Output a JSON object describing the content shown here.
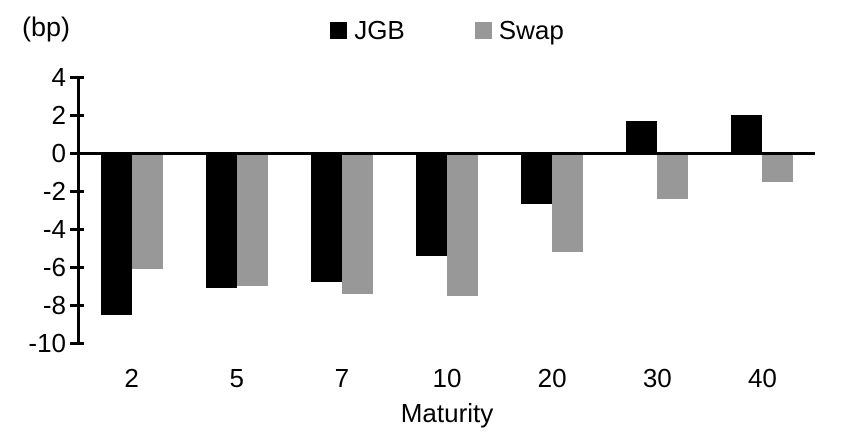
{
  "chart_data": {
    "type": "bar",
    "title": "",
    "categories": [
      "2",
      "5",
      "7",
      "10",
      "20",
      "30",
      "40"
    ],
    "series": [
      {
        "name": "JGB",
        "color": "#000000",
        "values": [
          -8.5,
          -7.1,
          -6.8,
          -5.4,
          -2.7,
          1.7,
          2.0
        ]
      },
      {
        "name": "Swap",
        "color": "#989898",
        "values": [
          -6.1,
          -7.0,
          -7.4,
          -7.5,
          -5.2,
          -2.4,
          -1.5
        ]
      }
    ],
    "xlabel": "Maturity",
    "ylabel": "(bp)",
    "ylim": [
      -10,
      4
    ],
    "yticks": [
      4,
      2,
      0,
      -2,
      -4,
      -6,
      -8,
      -10
    ],
    "grid": false,
    "legend_position": "top-center",
    "background_color": "#ffffff",
    "axis_color": "#000000"
  }
}
